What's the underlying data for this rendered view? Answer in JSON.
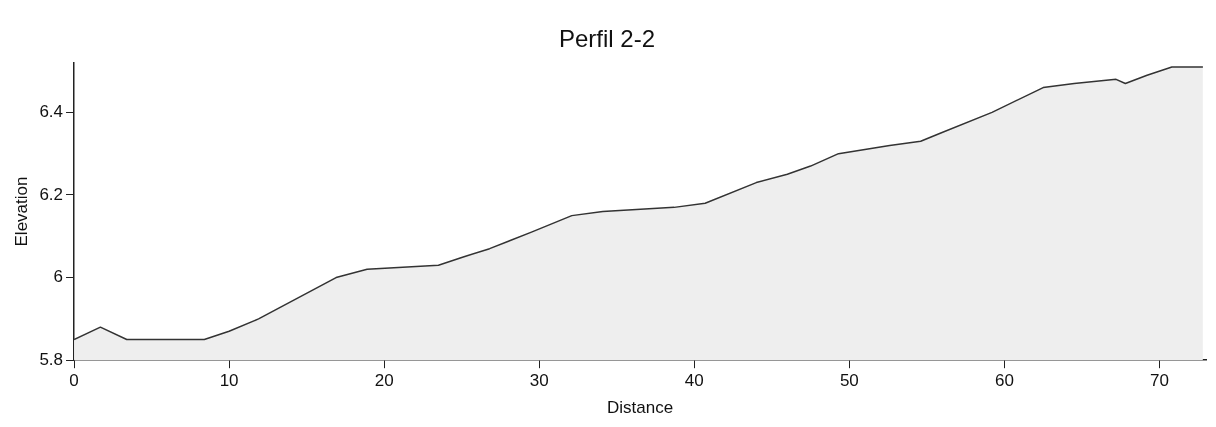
{
  "chart_data": {
    "type": "area",
    "title": "Perfil 2-2",
    "xlabel": "Distance",
    "ylabel": "Elevation",
    "series": [
      {
        "color": "#333333",
        "x": [
          0,
          1.7,
          3.4,
          8.4,
          10,
          11.9,
          14.9,
          16.9,
          18.9,
          23.5,
          25.1,
          26.8,
          29.5,
          32.1,
          34.1,
          38.7,
          40.7,
          44,
          46,
          47.5,
          49.3,
          52.6,
          54.6,
          55.9,
          59.2,
          62.5,
          64.5,
          67.2,
          67.8,
          69.2,
          70.8,
          72.8
        ],
        "values": [
          5.85,
          5.88,
          5.85,
          5.85,
          5.87,
          5.9,
          5.96,
          6.0,
          6.02,
          6.03,
          6.05,
          6.07,
          6.11,
          6.15,
          6.16,
          6.17,
          6.18,
          6.23,
          6.25,
          6.27,
          6.3,
          6.32,
          6.33,
          6.35,
          6.4,
          6.46,
          6.47,
          6.48,
          6.47,
          6.49,
          6.51,
          6.51
        ]
      }
    ],
    "xlim": [
      0,
      73
    ],
    "xticks": [
      0,
      10,
      20,
      30,
      40,
      50,
      60,
      70
    ],
    "ylim": [
      5.8,
      6.52
    ],
    "yticks": [
      5.8,
      6,
      6.2,
      6.4
    ],
    "grid": false,
    "legend": false,
    "marker": "none",
    "line_style": "solid"
  }
}
